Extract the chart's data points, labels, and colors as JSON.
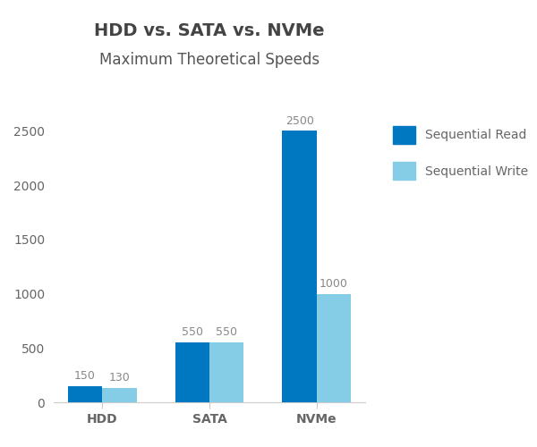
{
  "title": "HDD vs. SATA vs. NVMe",
  "subtitle": "Maximum Theoretical Speeds",
  "categories": [
    "HDD",
    "SATA",
    "NVMe"
  ],
  "sequential_read": [
    150,
    550,
    2500
  ],
  "sequential_write": [
    130,
    550,
    1000
  ],
  "color_read": "#0078C1",
  "color_write": "#85CDE6",
  "bar_width": 0.32,
  "ylim": [
    0,
    2800
  ],
  "yticks": [
    0,
    500,
    1000,
    1500,
    2000,
    2500
  ],
  "title_fontsize": 14,
  "subtitle_fontsize": 12,
  "tick_label_fontsize": 10,
  "annotation_fontsize": 9,
  "legend_fontsize": 10,
  "title_color": "#444444",
  "subtitle_color": "#555555",
  "axis_label_color": "#666666",
  "annotation_color": "#888888",
  "background_color": "#ffffff"
}
